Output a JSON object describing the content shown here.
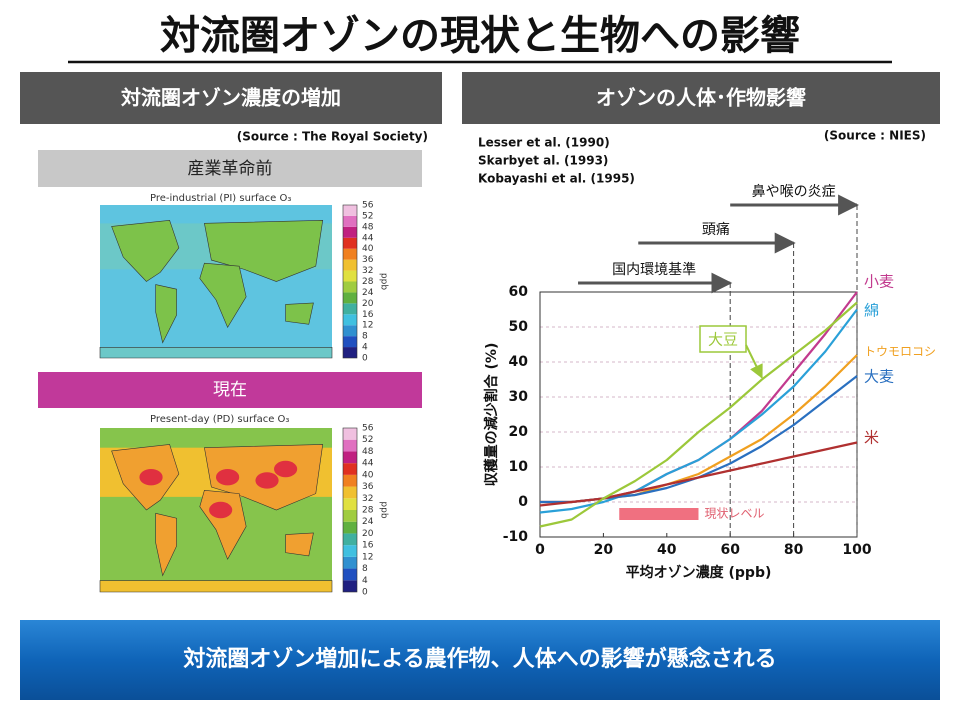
{
  "header": {
    "title": "対流圏オゾンの現状と生物への影響"
  },
  "left_panel": {
    "title": "対流圏オゾン濃度の増加",
    "source": "(Source : The Royal Society)",
    "maps": [
      {
        "label": "産業革命前",
        "title": "Pre-industrial (PI) surface O₃"
      },
      {
        "label": "現在",
        "title": "Present-day (PD) surface O₃"
      }
    ],
    "colorbar": {
      "unit": "ppb",
      "ticks": [
        0,
        4,
        8,
        12,
        16,
        20,
        24,
        28,
        32,
        36,
        40,
        44,
        48,
        52,
        56
      ]
    }
  },
  "chart_data": {
    "type": "line",
    "title": "オゾンの人体･作物影響",
    "source": "(Source : NIES)",
    "references": [
      "Lesser et al. (1990)",
      "Skarbyet al. (1993)",
      "Kobayashi et al. (1995)"
    ],
    "x_label": "平均オゾン濃度 (ppb)",
    "y_label": "収穫量の減少割合 (%)",
    "x": [
      0,
      10,
      20,
      30,
      40,
      50,
      60,
      70,
      80,
      90,
      100
    ],
    "xlim": [
      0,
      100
    ],
    "xticks": [
      0,
      20,
      40,
      60,
      80,
      100
    ],
    "ylim": [
      -10,
      60
    ],
    "yticks": [
      -10,
      0,
      10,
      20,
      30,
      40,
      50,
      60
    ],
    "grid": true,
    "thresholds": [
      {
        "label": "国内環境基準",
        "start": 12,
        "end": 60
      },
      {
        "label": "頭痛",
        "start": 31,
        "end": 80
      },
      {
        "label": "鼻や喉の炎症",
        "start": 60,
        "end": 100
      }
    ],
    "current_level": {
      "label": "現状レベル",
      "range": [
        25,
        50
      ]
    },
    "series": [
      {
        "name": "小麦",
        "color": "#c23a8e",
        "values": [
          0,
          0,
          1,
          3,
          8,
          12,
          18,
          26,
          37,
          48,
          60
        ]
      },
      {
        "name": "綿",
        "color": "#2aa0d8",
        "values": [
          -3,
          -2,
          0,
          3,
          8,
          12,
          18,
          25,
          33,
          43,
          55
        ]
      },
      {
        "name": "トウモロコシ",
        "color": "#f0a020",
        "values": [
          0,
          0,
          1,
          2,
          5,
          8,
          13,
          18,
          25,
          33,
          42
        ]
      },
      {
        "name": "大麦",
        "color": "#2a70c0",
        "values": [
          0,
          0,
          1,
          2,
          4,
          7,
          11,
          16,
          22,
          29,
          36
        ]
      },
      {
        "name": "米",
        "color": "#b03030",
        "values": [
          -1,
          0,
          1,
          3,
          5,
          7,
          9,
          11,
          13,
          15,
          17
        ]
      },
      {
        "name": "大豆",
        "color": "#9cc83a",
        "values": [
          -7,
          -5,
          1,
          6,
          12,
          20,
          27,
          35,
          42,
          49,
          57
        ]
      }
    ]
  },
  "footer": {
    "text": "対流圏オゾン増加による農作物、人体への影響が懸念される"
  }
}
